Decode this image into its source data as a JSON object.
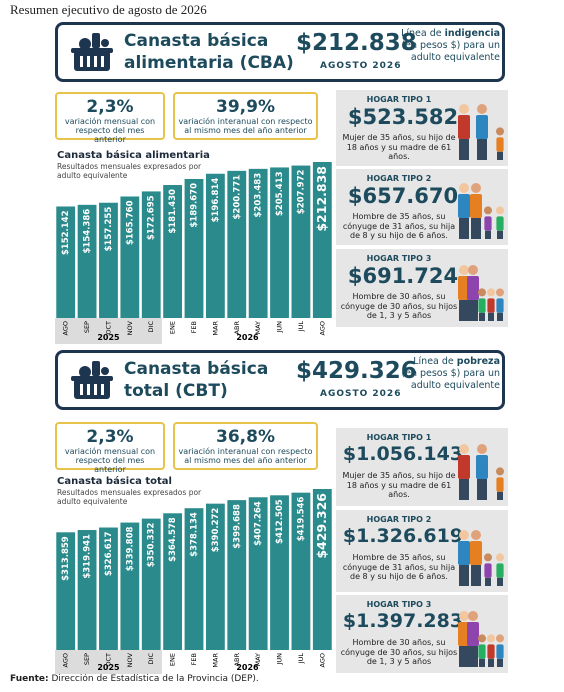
{
  "header": {
    "title": "Resumen ejecutivo de agosto de 2026"
  },
  "sections": [
    {
      "title": "Canasta básica alimentaria (CBA)",
      "amount": "$212.838",
      "period": "AGOSTO 2026",
      "line_pre": "Línea de",
      "line_bold": "indigencia",
      "line_post": "(en pesos $) para un adulto equivalente",
      "stats": [
        {
          "value": "2,3%",
          "label": "variación mensual con respecto del mes anterior"
        },
        {
          "value": "39,9%",
          "label": "variación interanual con respecto al mismo mes del año anterior"
        }
      ],
      "households": [
        {
          "title": "HOGAR TIPO 1",
          "amount": "$523.582",
          "description": "Mujer de 35 años, su hijo de 18 años y su madre de 61 años."
        },
        {
          "title": "HOGAR TIPO 2",
          "amount": "$657.670",
          "description": "Hombre de 35 años, su cónyuge de 31 años, su hija de 8 y su hijo de 6 años."
        },
        {
          "title": "HOGAR TIPO 3",
          "amount": "$691.724",
          "description": "Hombre de 30 años, su cónyuge de 30 años, su hijos de 1, 3 y 5 años"
        }
      ]
    },
    {
      "title": "Canasta básica total (CBT)",
      "amount": "$429.326",
      "period": "AGOSTO 2026",
      "line_pre": "Línea de",
      "line_bold": "pobreza",
      "line_post": "(en pesos $) para un adulto equivalente",
      "stats": [
        {
          "value": "2,3%",
          "label": "variación mensual con respecto del mes anterior"
        },
        {
          "value": "36,8%",
          "label": "variación interanual con respecto al mismo mes del año anterior"
        }
      ],
      "households": [
        {
          "title": "HOGAR TIPO 1",
          "amount": "$1.056.143",
          "description": "Mujer de 35 años, su hijo de 18 años y su madre de 61 años."
        },
        {
          "title": "HOGAR TIPO 2",
          "amount": "$1.326.619",
          "description": "Hombre de 35 años, su cónyuge de 31 años, su hija de 8 y su hijo de 6 años."
        },
        {
          "title": "HOGAR TIPO 3",
          "amount": "$1.397.283",
          "description": "Hombre de 30 años, su cónyuge de 30 años, su hijos de 1, 3 y 5 años"
        }
      ]
    }
  ],
  "chart_data": [
    {
      "type": "bar",
      "title": "Canasta básica alimentaria",
      "subtitle": "Resultados mensuales expresados por adulto equivalente",
      "categories": [
        "AGO",
        "SEP",
        "OCT",
        "NOV",
        "DIC",
        "ENE",
        "FEB",
        "MAR",
        "ABR",
        "MAY",
        "JUN",
        "JUL",
        "AGO"
      ],
      "groups": [
        {
          "label": "2025",
          "count": 5
        },
        {
          "label": "2026",
          "count": 8
        }
      ],
      "values": [
        152142,
        154386,
        157255,
        165760,
        172695,
        181430,
        189670,
        196814,
        200771,
        203483,
        205413,
        207972,
        212838
      ],
      "value_labels": [
        "$152.142",
        "$154.386",
        "$157.255",
        "$165.760",
        "$172.695",
        "$181.430",
        "$189.670",
        "$196.814",
        "$200.771",
        "$203.483",
        "$205.413",
        "$207.972",
        "$212.838"
      ],
      "color": "#2a8a8c"
    },
    {
      "type": "bar",
      "title": "Canasta básica total",
      "subtitle": "Resultados mensuales expresados por adulto equivalente",
      "categories": [
        "AGO",
        "SEP",
        "OCT",
        "NOV",
        "DIC",
        "ENE",
        "FEB",
        "MAR",
        "ABR",
        "MAY",
        "JUN",
        "JUL",
        "AGO"
      ],
      "groups": [
        {
          "label": "2025",
          "count": 5
        },
        {
          "label": "2026",
          "count": 8
        }
      ],
      "values": [
        313859,
        319941,
        326617,
        339808,
        350332,
        364578,
        378134,
        390272,
        399688,
        407264,
        412505,
        419546,
        429326
      ],
      "value_labels": [
        "$313.859",
        "$319.941",
        "$326.617",
        "$339.808",
        "$350.332",
        "$364.578",
        "$378.134",
        "$390.272",
        "$399.688",
        "$407.264",
        "$412.505",
        "$419.546",
        "$429.326"
      ],
      "color": "#2a8a8c"
    }
  ],
  "footer": {
    "label": "Fuente:",
    "text": "Dirección de Estadística de la Provincia (DEP)."
  }
}
